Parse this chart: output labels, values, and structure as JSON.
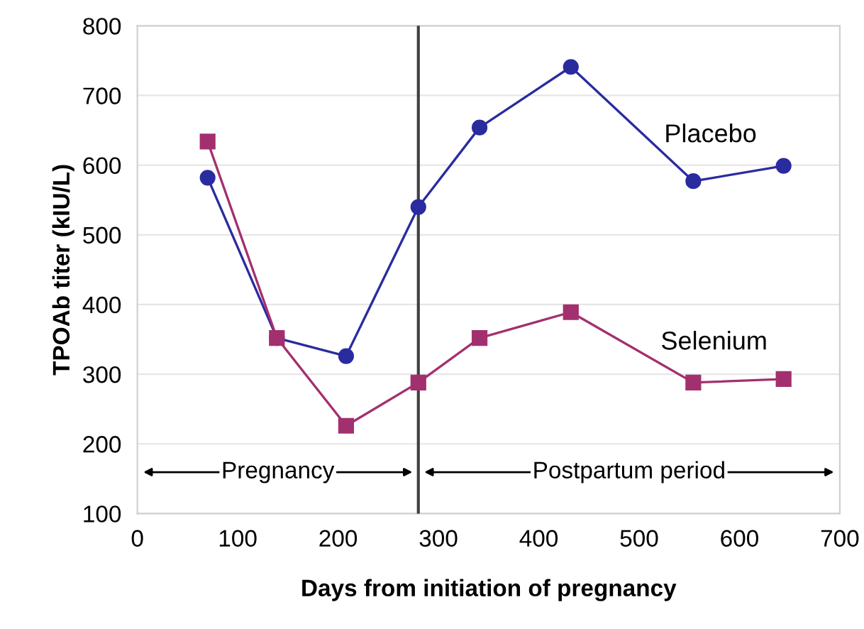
{
  "chart_data": {
    "type": "line",
    "xlabel": "Days from initiation of pregnancy",
    "ylabel": "TPOAb titer (kIU/L)",
    "series": [
      {
        "name": "Placebo",
        "color": "#2b2ba0",
        "marker": "circle",
        "x": [
          70,
          139,
          208,
          280,
          341,
          432,
          554,
          644
        ],
        "values": [
          582,
          352,
          326,
          540,
          654,
          741,
          577,
          599
        ]
      },
      {
        "name": "Selenium",
        "color": "#a3306e",
        "marker": "square",
        "x": [
          70,
          139,
          208,
          280,
          341,
          432,
          554,
          644
        ],
        "values": [
          634,
          352,
          226,
          288,
          352,
          389,
          288,
          293
        ]
      }
    ],
    "xlim": [
      0,
      700
    ],
    "xticks": [
      0,
      100,
      200,
      300,
      400,
      500,
      600,
      700
    ],
    "ylim": [
      100,
      800
    ],
    "yticks": [
      100,
      200,
      300,
      400,
      500,
      600,
      700,
      800
    ],
    "grid": "y",
    "line_style": "solid",
    "ref_lines": [
      {
        "axis": "x",
        "value": 280,
        "color": "#404040"
      }
    ],
    "annotations": [
      "Pregnancy",
      "Postpartum period"
    ]
  }
}
